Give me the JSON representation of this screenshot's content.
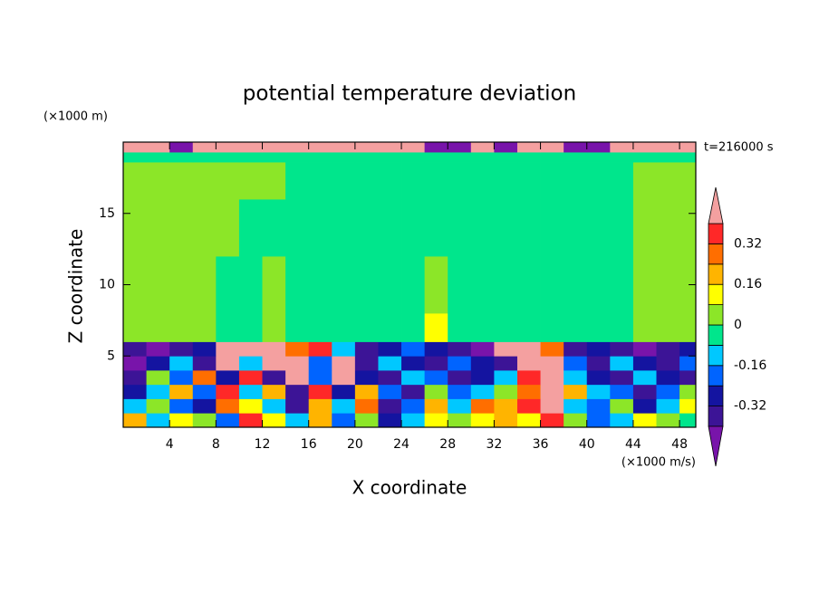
{
  "chart_data": {
    "type": "contour",
    "title": "potential temperature deviation",
    "y_unit_label": "(×1000 m)",
    "x_unit_label": "(×1000 m/s)",
    "time_label": "t=216000 s",
    "xlabel": "X coordinate",
    "ylabel": "Z coordinate",
    "xlim": [
      0,
      49.4
    ],
    "ylim": [
      0,
      20
    ],
    "xticks": [
      4,
      8,
      12,
      16,
      20,
      24,
      28,
      32,
      36,
      40,
      44,
      48
    ],
    "yticks": [
      5,
      10,
      15
    ],
    "levels": [
      -0.4,
      -0.32,
      -0.24,
      -0.16,
      -0.08,
      0,
      0.08,
      0.16,
      0.24,
      0.32,
      0.4
    ],
    "colors": [
      "#7814aa",
      "#3c1496",
      "#1414a0",
      "#0064ff",
      "#00c8ff",
      "#00e68c",
      "#8ce628",
      "#ffff00",
      "#ffb400",
      "#ff6e00",
      "#ff2828",
      "#f4a0a0"
    ],
    "colorbar_ticks": [
      -0.32,
      -0.16,
      0,
      0.16,
      0.32
    ],
    "x_edges": [
      0,
      2,
      4,
      6,
      8,
      10,
      12,
      14,
      16,
      18,
      20,
      22,
      24,
      26,
      28,
      30,
      32,
      34,
      36,
      38,
      40,
      42,
      44,
      46,
      48,
      50
    ],
    "y_edges": [
      0,
      1,
      2,
      3,
      4,
      5,
      6,
      8,
      12,
      16,
      18.6,
      19.3,
      20
    ],
    "z": [
      [
        0.2,
        -0.12,
        0.12,
        0.04,
        -0.2,
        0.36,
        0.12,
        -0.12,
        0.2,
        -0.2,
        0.04,
        -0.28,
        -0.12,
        0.12,
        0.04,
        0.12,
        0.2,
        0.12,
        0.36,
        0.04,
        -0.2,
        -0.12,
        0.12,
        0.04,
        -0.04
      ],
      [
        -0.12,
        0.04,
        -0.2,
        -0.28,
        0.28,
        0.12,
        -0.12,
        -0.36,
        0.2,
        -0.12,
        0.28,
        -0.36,
        -0.2,
        0.2,
        -0.12,
        0.28,
        0.2,
        0.36,
        0.45,
        -0.12,
        -0.2,
        0.04,
        -0.28,
        -0.12,
        0.12
      ],
      [
        -0.28,
        -0.12,
        0.2,
        -0.2,
        0.36,
        -0.12,
        0.2,
        -0.36,
        0.36,
        -0.28,
        0.2,
        -0.2,
        -0.36,
        0.04,
        -0.2,
        -0.12,
        0.04,
        0.28,
        0.45,
        0.2,
        -0.12,
        -0.2,
        -0.36,
        -0.2,
        0.04
      ],
      [
        -0.36,
        0.04,
        -0.2,
        0.28,
        -0.28,
        0.36,
        -0.36,
        0.45,
        -0.2,
        0.45,
        -0.28,
        -0.36,
        -0.12,
        -0.2,
        -0.36,
        -0.28,
        -0.12,
        0.36,
        0.45,
        -0.12,
        -0.28,
        -0.36,
        -0.12,
        -0.28,
        -0.36
      ],
      [
        -0.45,
        -0.28,
        -0.12,
        -0.36,
        0.45,
        -0.12,
        0.45,
        0.45,
        -0.2,
        0.45,
        -0.36,
        -0.12,
        -0.28,
        -0.36,
        -0.2,
        -0.28,
        -0.36,
        0.45,
        0.45,
        -0.2,
        -0.36,
        -0.12,
        -0.28,
        -0.36,
        -0.2
      ],
      [
        -0.36,
        -0.45,
        -0.36,
        -0.28,
        0.45,
        0.45,
        0.45,
        0.28,
        0.36,
        -0.12,
        -0.36,
        -0.28,
        -0.2,
        -0.28,
        -0.36,
        -0.45,
        0.45,
        0.45,
        0.28,
        -0.36,
        -0.28,
        -0.36,
        -0.45,
        -0.36,
        -0.28
      ],
      [
        0.04,
        0.04,
        0.04,
        0.04,
        -0.04,
        -0.04,
        0.04,
        -0.04,
        -0.04,
        -0.04,
        -0.04,
        -0.04,
        -0.04,
        0.12,
        -0.04,
        -0.04,
        -0.04,
        -0.04,
        -0.04,
        -0.04,
        -0.04,
        -0.04,
        0.04,
        0.04,
        0.04
      ],
      [
        0.04,
        0.04,
        0.04,
        0.04,
        -0.04,
        -0.04,
        0.04,
        -0.04,
        -0.04,
        -0.04,
        -0.04,
        -0.04,
        -0.04,
        0.04,
        -0.04,
        -0.04,
        -0.04,
        -0.04,
        -0.04,
        -0.04,
        -0.04,
        -0.04,
        0.04,
        0.04,
        0.04
      ],
      [
        0.04,
        0.04,
        0.04,
        0.04,
        0.04,
        -0.04,
        -0.04,
        -0.04,
        -0.04,
        -0.04,
        -0.04,
        -0.04,
        -0.04,
        -0.04,
        -0.04,
        -0.04,
        -0.04,
        -0.04,
        -0.04,
        -0.04,
        -0.04,
        -0.04,
        0.04,
        0.04,
        0.04
      ],
      [
        0.04,
        0.04,
        0.04,
        0.04,
        0.04,
        0.04,
        0.04,
        -0.04,
        -0.04,
        -0.04,
        -0.04,
        -0.04,
        -0.04,
        -0.04,
        -0.04,
        -0.04,
        -0.04,
        -0.04,
        -0.04,
        -0.04,
        -0.04,
        -0.04,
        0.04,
        0.04,
        0.04
      ],
      [
        -0.04,
        -0.04,
        -0.04,
        -0.04,
        -0.04,
        -0.04,
        -0.04,
        -0.04,
        -0.04,
        -0.04,
        -0.04,
        -0.04,
        -0.04,
        -0.04,
        -0.04,
        -0.04,
        -0.04,
        -0.04,
        -0.04,
        -0.04,
        -0.04,
        -0.04,
        -0.04,
        -0.04,
        -0.04
      ],
      [
        0.45,
        0.45,
        -0.45,
        0.45,
        0.45,
        0.45,
        0.45,
        0.45,
        0.45,
        0.45,
        0.45,
        0.45,
        0.45,
        -0.45,
        -0.45,
        0.45,
        -0.45,
        0.45,
        0.45,
        -0.45,
        -0.45,
        0.45,
        0.45,
        0.45,
        0.45
      ]
    ]
  }
}
